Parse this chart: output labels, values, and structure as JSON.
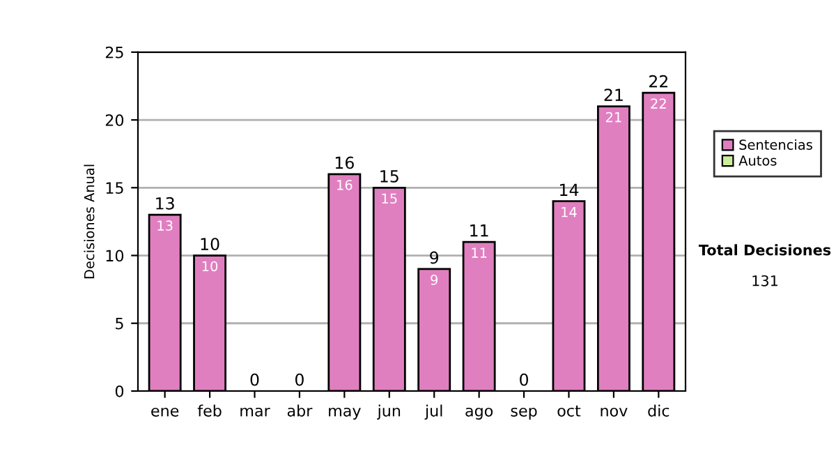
{
  "chart_data": {
    "type": "bar",
    "stacked": true,
    "ylabel": "Decisiones Anual",
    "categories": [
      "ene",
      "feb",
      "mar",
      "abr",
      "may",
      "jun",
      "jul",
      "ago",
      "sep",
      "oct",
      "nov",
      "dic"
    ],
    "series": [
      {
        "name": "Sentencias",
        "color": "#e07fc0",
        "values": [
          13,
          10,
          0,
          0,
          16,
          15,
          9,
          11,
          0,
          14,
          21,
          22
        ],
        "value_labels": [
          "13",
          "10",
          null,
          null,
          "16",
          "15",
          "9",
          "11",
          null,
          "14",
          "21",
          "22"
        ]
      },
      {
        "name": "Autos",
        "color": "#ccee99",
        "values": [
          0,
          0,
          0,
          0,
          0,
          0,
          0,
          0,
          0,
          0,
          0,
          0
        ]
      }
    ],
    "totals": [
      "13",
      "10",
      "0",
      "0",
      "16",
      "15",
      "9",
      "11",
      "0",
      "14",
      "21",
      "22"
    ],
    "ylim": [
      0,
      25
    ],
    "yticks": [
      0,
      5,
      10,
      15,
      20,
      25
    ],
    "grid": "y",
    "legend": "right",
    "annotations": [
      "Total Decisiones",
      "131"
    ]
  }
}
